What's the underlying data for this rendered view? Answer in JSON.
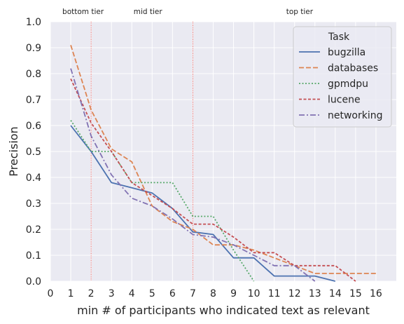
{
  "chart_data": {
    "type": "line",
    "xlabel": "min # of participants who indicated text as relevant",
    "ylabel": "Precision",
    "xlim": [
      0,
      17
    ],
    "ylim": [
      0,
      1.0
    ],
    "x_ticks": [
      "0",
      "1",
      "2",
      "3",
      "4",
      "5",
      "6",
      "7",
      "8",
      "9",
      "10",
      "11",
      "12",
      "13",
      "14",
      "15",
      "16"
    ],
    "y_ticks": [
      "0.0",
      "0.1",
      "0.2",
      "0.3",
      "0.4",
      "0.5",
      "0.6",
      "0.7",
      "0.8",
      "0.9",
      "1.0"
    ],
    "grid": true,
    "legend_title": "Task",
    "legend_position": "top-right",
    "tiers": [
      {
        "label": "bottom tier",
        "x": 1
      },
      {
        "label": "mid tier",
        "x": 4.5
      },
      {
        "label": "top tier",
        "x": 12
      }
    ],
    "tier_boundaries": [
      2,
      7
    ],
    "series": [
      {
        "name": "bugzilla",
        "color": "#4c72b0",
        "dash": "solid",
        "points": [
          [
            1,
            0.6
          ],
          [
            2,
            0.5
          ],
          [
            3,
            0.38
          ],
          [
            4,
            0.36
          ],
          [
            5,
            0.34
          ],
          [
            6,
            0.28
          ],
          [
            7,
            0.19
          ],
          [
            8,
            0.18
          ],
          [
            9,
            0.09
          ],
          [
            10,
            0.09
          ],
          [
            11,
            0.02
          ],
          [
            12,
            0.02
          ],
          [
            13,
            0.02
          ],
          [
            14,
            0.0
          ]
        ]
      },
      {
        "name": "databases",
        "color": "#dd8452",
        "dash": "dashed",
        "points": [
          [
            1,
            0.91
          ],
          [
            2,
            0.66
          ],
          [
            3,
            0.51
          ],
          [
            4,
            0.46
          ],
          [
            5,
            0.29
          ],
          [
            6,
            0.23
          ],
          [
            7,
            0.2
          ],
          [
            8,
            0.14
          ],
          [
            9,
            0.14
          ],
          [
            10,
            0.12
          ],
          [
            11,
            0.09
          ],
          [
            12,
            0.06
          ],
          [
            13,
            0.03
          ],
          [
            14,
            0.03
          ],
          [
            15,
            0.03
          ],
          [
            16,
            0.03
          ]
        ]
      },
      {
        "name": "gpmdpu",
        "color": "#55a868",
        "dash": "dotted",
        "points": [
          [
            1,
            0.62
          ],
          [
            2,
            0.5
          ],
          [
            3,
            0.5
          ],
          [
            4,
            0.38
          ],
          [
            5,
            0.38
          ],
          [
            6,
            0.38
          ],
          [
            7,
            0.25
          ],
          [
            8,
            0.25
          ],
          [
            9,
            0.12
          ],
          [
            10,
            0.0
          ]
        ]
      },
      {
        "name": "lucene",
        "color": "#c44e52",
        "dash": "dashed-short",
        "points": [
          [
            1,
            0.78
          ],
          [
            2,
            0.61
          ],
          [
            3,
            0.5
          ],
          [
            4,
            0.38
          ],
          [
            5,
            0.33
          ],
          [
            6,
            0.28
          ],
          [
            7,
            0.22
          ],
          [
            8,
            0.22
          ],
          [
            9,
            0.17
          ],
          [
            10,
            0.11
          ],
          [
            11,
            0.11
          ],
          [
            12,
            0.06
          ],
          [
            13,
            0.06
          ],
          [
            14,
            0.06
          ],
          [
            15,
            0.0
          ]
        ]
      },
      {
        "name": "networking",
        "color": "#8172b3",
        "dash": "dashdot",
        "points": [
          [
            1,
            0.82
          ],
          [
            2,
            0.56
          ],
          [
            3,
            0.41
          ],
          [
            4,
            0.32
          ],
          [
            5,
            0.29
          ],
          [
            6,
            0.24
          ],
          [
            7,
            0.18
          ],
          [
            8,
            0.17
          ],
          [
            9,
            0.14
          ],
          [
            10,
            0.1
          ],
          [
            11,
            0.06
          ],
          [
            12,
            0.06
          ],
          [
            13,
            0.0
          ]
        ]
      }
    ]
  }
}
